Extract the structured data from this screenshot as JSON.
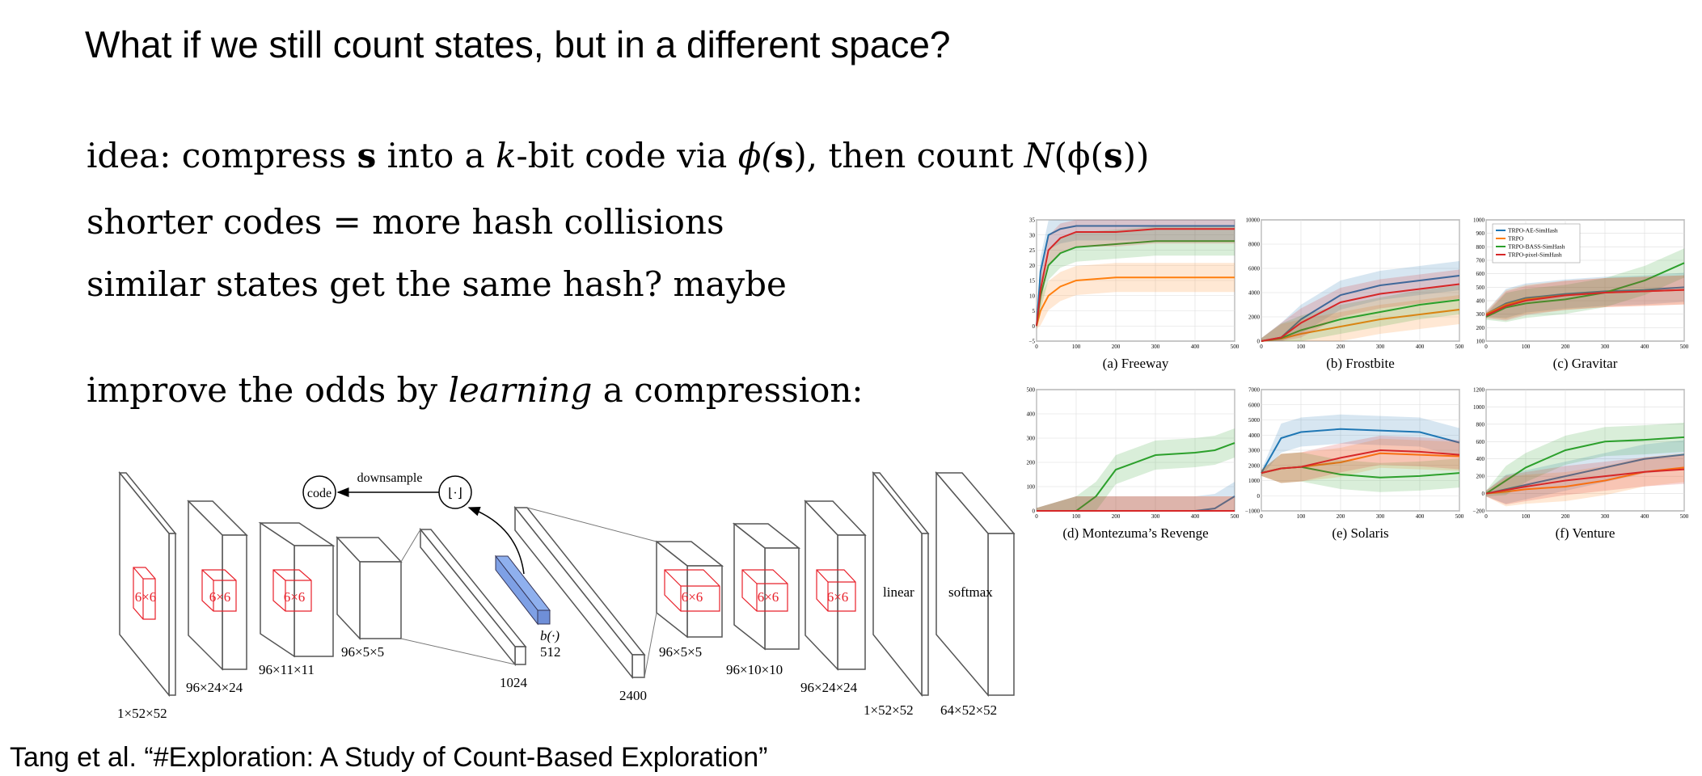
{
  "slide": {
    "title": "What if we still count states, but in a different space?",
    "bullets": {
      "idea": {
        "pre": "idea: compress ",
        "s": "s",
        "mid1": " into a ",
        "k": "k",
        "mid2": "-bit code via ",
        "phi": "ϕ(",
        "s2": "s",
        "post1": "), then count ",
        "N": "N",
        "post2": "(ϕ(",
        "s3": "s",
        "post3": "))"
      },
      "b2": "shorter codes = more hash collisions",
      "b3": "similar states get the same hash? maybe",
      "b4": {
        "pre": "improve the odds by ",
        "em": "learning",
        "post": " a compression:"
      }
    },
    "citation": "Tang et al. “#Exploration: A Study of Count-Based Exploration”"
  },
  "diagram": {
    "nodes": {
      "code": "code",
      "floor": "⌊·⌋",
      "downsample": "downsample"
    },
    "kernel_label": "6×6",
    "blocks": {
      "b1": "1×52×52",
      "b2": "96×24×24",
      "b3": "96×11×11",
      "b4": "96×5×5",
      "b5": "1024",
      "b6": "512",
      "bfunc": "b(·)",
      "b7": "2400",
      "b8": "96×5×5",
      "b9": "96×10×10",
      "b10": "96×24×24",
      "b11": "1×52×52",
      "b12": "64×52×52",
      "linear": "linear",
      "softmax": "softmax"
    }
  },
  "legend": [
    "TRPO-AE-SimHash",
    "TRPO",
    "TRPO-BASS-SimHash",
    "TRPO-pixel-SimHash"
  ],
  "colors": {
    "blue": "#1f77b4",
    "orange": "#ff7f0e",
    "green": "#2ca02c",
    "red": "#d62728",
    "kernel": "#e8202a",
    "code_layer": "#8fb0ee"
  },
  "chart_data": [
    {
      "type": "line",
      "title": "(a) Freeway",
      "xlim": [
        0,
        500
      ],
      "ylim": [
        -5,
        35
      ],
      "xticks": [
        "0",
        "100",
        "200",
        "300",
        "400",
        "500"
      ],
      "yticks": [
        "−5",
        "0",
        "5",
        "10",
        "15",
        "20",
        "25",
        "30",
        "35"
      ],
      "x": [
        0,
        10,
        30,
        60,
        100,
        200,
        300,
        400,
        500
      ],
      "series": [
        {
          "name": "TRPO-AE-SimHash",
          "color": "blue",
          "values": [
            0,
            18,
            30,
            32,
            33,
            33,
            33,
            33,
            33
          ]
        },
        {
          "name": "TRPO",
          "color": "orange",
          "values": [
            0,
            5,
            10,
            13,
            15,
            16,
            16,
            16,
            16
          ]
        },
        {
          "name": "TRPO-BASS-SimHash",
          "color": "green",
          "values": [
            0,
            10,
            20,
            24,
            26,
            27,
            28,
            28,
            28
          ]
        },
        {
          "name": "TRPO-pixel-SimHash",
          "color": "red",
          "values": [
            0,
            12,
            25,
            29,
            31,
            31,
            32,
            32,
            32
          ]
        }
      ]
    },
    {
      "type": "line",
      "title": "(b) Frostbite",
      "xlim": [
        0,
        500
      ],
      "ylim": [
        0,
        10000
      ],
      "xticks": [
        "0",
        "100",
        "200",
        "300",
        "400",
        "500"
      ],
      "yticks": [
        "0",
        "2000",
        "4000",
        "6000",
        "8000",
        "10000"
      ],
      "x": [
        0,
        50,
        100,
        200,
        300,
        400,
        500
      ],
      "series": [
        {
          "name": "TRPO-AE-SimHash",
          "color": "blue",
          "values": [
            0,
            300,
            1800,
            3800,
            4600,
            5000,
            5400
          ]
        },
        {
          "name": "TRPO",
          "color": "orange",
          "values": [
            0,
            200,
            600,
            1200,
            1800,
            2200,
            2600
          ]
        },
        {
          "name": "TRPO-BASS-SimHash",
          "color": "green",
          "values": [
            0,
            250,
            900,
            1800,
            2400,
            3000,
            3400
          ]
        },
        {
          "name": "TRPO-pixel-SimHash",
          "color": "red",
          "values": [
            0,
            300,
            1500,
            3200,
            3900,
            4300,
            4700
          ]
        }
      ]
    },
    {
      "type": "line",
      "title": "(c) Gravitar",
      "xlim": [
        0,
        500
      ],
      "ylim": [
        100,
        1000
      ],
      "xticks": [
        "0",
        "100",
        "200",
        "300",
        "400",
        "500"
      ],
      "yticks": [
        "100",
        "200",
        "300",
        "400",
        "500",
        "600",
        "700",
        "800",
        "900",
        "1000"
      ],
      "x": [
        0,
        50,
        100,
        200,
        300,
        400,
        500
      ],
      "series": [
        {
          "name": "TRPO-AE-SimHash",
          "color": "blue",
          "values": [
            300,
            380,
            420,
            450,
            470,
            480,
            500
          ]
        },
        {
          "name": "TRPO",
          "color": "orange",
          "values": [
            300,
            370,
            410,
            440,
            460,
            470,
            480
          ]
        },
        {
          "name": "TRPO-BASS-SimHash",
          "color": "green",
          "values": [
            280,
            350,
            380,
            410,
            460,
            550,
            680
          ]
        },
        {
          "name": "TRPO-pixel-SimHash",
          "color": "red",
          "values": [
            290,
            360,
            400,
            440,
            460,
            470,
            480
          ]
        }
      ]
    },
    {
      "type": "line",
      "title": "(d) Montezuma’s Revenge",
      "xlim": [
        0,
        500
      ],
      "ylim": [
        0,
        500
      ],
      "xticks": [
        "0",
        "100",
        "200",
        "300",
        "400",
        "500"
      ],
      "yticks": [
        "0",
        "100",
        "200",
        "300",
        "400",
        "500"
      ],
      "x": [
        0,
        100,
        150,
        200,
        300,
        400,
        450,
        500
      ],
      "series": [
        {
          "name": "TRPO-AE-SimHash",
          "color": "blue",
          "values": [
            0,
            0,
            0,
            0,
            0,
            0,
            10,
            60
          ]
        },
        {
          "name": "TRPO",
          "color": "orange",
          "values": [
            0,
            0,
            0,
            0,
            0,
            0,
            0,
            0
          ]
        },
        {
          "name": "TRPO-BASS-SimHash",
          "color": "green",
          "values": [
            0,
            0,
            60,
            170,
            230,
            240,
            250,
            280
          ]
        },
        {
          "name": "TRPO-pixel-SimHash",
          "color": "red",
          "values": [
            0,
            0,
            0,
            0,
            0,
            0,
            0,
            0
          ]
        }
      ]
    },
    {
      "type": "line",
      "title": "(e) Solaris",
      "xlim": [
        0,
        500
      ],
      "ylim": [
        -1000,
        7000
      ],
      "xticks": [
        "0",
        "100",
        "200",
        "300",
        "400",
        "500"
      ],
      "yticks": [
        "−1000",
        "0",
        "1000",
        "2000",
        "3000",
        "4000",
        "5000",
        "6000",
        "7000"
      ],
      "x": [
        0,
        50,
        100,
        200,
        300,
        400,
        500
      ],
      "series": [
        {
          "name": "TRPO-AE-SimHash",
          "color": "blue",
          "values": [
            1500,
            3800,
            4200,
            4400,
            4300,
            4200,
            3500
          ]
        },
        {
          "name": "TRPO",
          "color": "orange",
          "values": [
            1500,
            1800,
            1900,
            2200,
            2800,
            2700,
            2600
          ]
        },
        {
          "name": "TRPO-BASS-SimHash",
          "color": "green",
          "values": [
            1500,
            1800,
            1900,
            1400,
            1200,
            1300,
            1500
          ]
        },
        {
          "name": "TRPO-pixel-SimHash",
          "color": "red",
          "values": [
            1500,
            1800,
            1900,
            2500,
            3000,
            2900,
            2700
          ]
        }
      ]
    },
    {
      "type": "line",
      "title": "(f) Venture",
      "xlim": [
        0,
        500
      ],
      "ylim": [
        -200,
        1200
      ],
      "xticks": [
        "0",
        "100",
        "200",
        "300",
        "400",
        "500"
      ],
      "yticks": [
        "−200",
        "0",
        "200",
        "400",
        "600",
        "800",
        "1000",
        "1200"
      ],
      "x": [
        0,
        50,
        100,
        200,
        300,
        400,
        500
      ],
      "series": [
        {
          "name": "TRPO-AE-SimHash",
          "color": "blue",
          "values": [
            0,
            50,
            100,
            200,
            300,
            400,
            450
          ]
        },
        {
          "name": "TRPO",
          "color": "orange",
          "values": [
            0,
            20,
            50,
            80,
            150,
            250,
            300
          ]
        },
        {
          "name": "TRPO-BASS-SimHash",
          "color": "green",
          "values": [
            0,
            150,
            300,
            500,
            600,
            620,
            650
          ]
        },
        {
          "name": "TRPO-pixel-SimHash",
          "color": "red",
          "values": [
            0,
            40,
            80,
            150,
            200,
            250,
            280
          ]
        }
      ]
    }
  ]
}
